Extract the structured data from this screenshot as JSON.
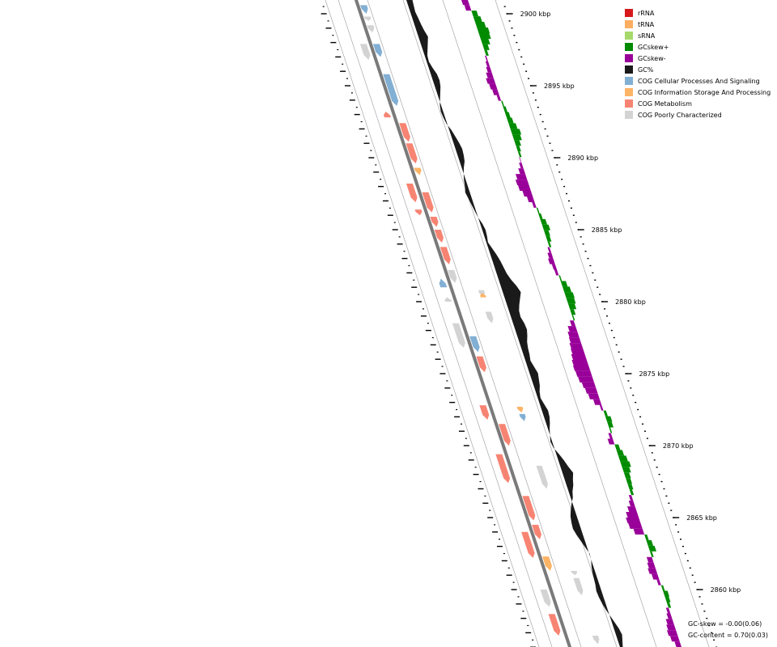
{
  "legend": {
    "items": [
      {
        "label": "rRNA",
        "color": "#d7191c"
      },
      {
        "label": "tRNA",
        "color": "#fdae61"
      },
      {
        "label": "sRNA",
        "color": "#a6d96a"
      },
      {
        "label": "GCskew+",
        "color": "#008b00"
      },
      {
        "label": "GCskew-",
        "color": "#990099"
      },
      {
        "label": "GC%",
        "color": "#1a1a1a"
      },
      {
        "label": "COG Cellular Processes And Signaling",
        "color": "#82afd4"
      },
      {
        "label": "COG Information Storage And Processing",
        "color": "#fdb466"
      },
      {
        "label": "COG Metabolism",
        "color": "#f78473"
      },
      {
        "label": "COG Poorly Characterized",
        "color": "#d3d3d3"
      }
    ]
  },
  "stats": {
    "gc_skew": "GC-skew = -0.00(0.06)",
    "gc_content": "GC-content = 0.70(0.03)"
  },
  "colors": {
    "backbone": "#7a7a7a",
    "ring_line": "#9a9a9a",
    "ticks": "#000000",
    "gc_content": "#1a1a1a",
    "skew_positive": "#008b00",
    "skew_negative": "#990099",
    "cds": {
      "cellular": "#82afd4",
      "information": "#fdb466",
      "metabolism": "#f78473",
      "poorly": "#d3d3d3"
    }
  },
  "chart_data": {
    "type": "genome_map_segment",
    "scale_labels": [
      {
        "kbp": 2900,
        "label": "2900 kbp"
      },
      {
        "kbp": 2895,
        "label": "2895 kbp"
      },
      {
        "kbp": 2890,
        "label": "2890 kbp"
      },
      {
        "kbp": 2885,
        "label": "2885 kbp"
      },
      {
        "kbp": 2880,
        "label": "2880 kbp"
      },
      {
        "kbp": 2875,
        "label": "2875 kbp"
      },
      {
        "kbp": 2870,
        "label": "2870 kbp"
      },
      {
        "kbp": 2865,
        "label": "2865 kbp"
      },
      {
        "kbp": 2860,
        "label": "2860 kbp"
      }
    ],
    "kbp_range": [
      2856.0,
      2901.0
    ],
    "forward_features": [
      {
        "start": 2900.6,
        "end": 2900.0,
        "cat": "cellular"
      },
      {
        "start": 2899.8,
        "end": 2899.5,
        "cat": "poorly"
      },
      {
        "start": 2899.2,
        "end": 2898.7,
        "cat": "poorly"
      },
      {
        "start": 2897.9,
        "end": 2897.0,
        "cat": "cellular"
      },
      {
        "start": 2895.8,
        "end": 2893.6,
        "cat": "cellular"
      },
      {
        "start": 2892.4,
        "end": 2891.1,
        "cat": "metabolism"
      },
      {
        "start": 2891.0,
        "end": 2889.6,
        "cat": "metabolism"
      },
      {
        "start": 2889.3,
        "end": 2888.8,
        "cat": "information"
      },
      {
        "start": 2887.6,
        "end": 2886.2,
        "cat": "metabolism"
      },
      {
        "start": 2885.9,
        "end": 2885.2,
        "cat": "metabolism"
      },
      {
        "start": 2885.0,
        "end": 2884.1,
        "cat": "metabolism"
      },
      {
        "start": 2883.8,
        "end": 2882.6,
        "cat": "metabolism"
      },
      {
        "start": 2882.2,
        "end": 2881.3,
        "cat": "poorly"
      },
      {
        "start": 2877.6,
        "end": 2876.5,
        "cat": "cellular"
      },
      {
        "start": 2876.2,
        "end": 2875.1,
        "cat": "metabolism"
      },
      {
        "start": 2871.5,
        "end": 2870.0,
        "cat": "metabolism"
      },
      {
        "start": 2866.5,
        "end": 2864.8,
        "cat": "metabolism"
      },
      {
        "start": 2864.5,
        "end": 2863.5,
        "cat": "metabolism"
      },
      {
        "start": 2862.3,
        "end": 2861.3,
        "cat": "information"
      }
    ],
    "reverse_features": [
      {
        "start": 2897.9,
        "end": 2896.8,
        "cat": "poorly"
      },
      {
        "start": 2892.8,
        "end": 2893.2,
        "cat": "metabolism"
      },
      {
        "start": 2888.2,
        "end": 2886.9,
        "cat": "metabolism"
      },
      {
        "start": 2886.4,
        "end": 2886.0,
        "cat": "metabolism"
      },
      {
        "start": 2881.0,
        "end": 2881.6,
        "cat": "cellular"
      },
      {
        "start": 2880.0,
        "end": 2880.3,
        "cat": "poorly"
      },
      {
        "start": 2878.5,
        "end": 2876.8,
        "cat": "poorly"
      },
      {
        "start": 2872.8,
        "end": 2871.8,
        "cat": "metabolism"
      },
      {
        "start": 2869.4,
        "end": 2867.4,
        "cat": "metabolism"
      },
      {
        "start": 2864.0,
        "end": 2862.2,
        "cat": "metabolism"
      },
      {
        "start": 2860.0,
        "end": 2858.8,
        "cat": "poorly"
      },
      {
        "start": 2858.3,
        "end": 2856.8,
        "cat": "metabolism"
      }
    ],
    "outer_reverse_features": [
      {
        "start": 2880.8,
        "end": 2880.3,
        "cat": "poorly"
      },
      {
        "start": 2880.3,
        "end": 2880.6,
        "cat": "information"
      },
      {
        "start": 2879.3,
        "end": 2878.5,
        "cat": "poorly"
      },
      {
        "start": 2872.2,
        "end": 2871.7,
        "cat": "cellular"
      },
      {
        "start": 2868.6,
        "end": 2867.0,
        "cat": "poorly"
      },
      {
        "start": 2861.3,
        "end": 2861.0,
        "cat": "poorly"
      },
      {
        "start": 2860.6,
        "end": 2860.4,
        "cat": "poorly"
      },
      {
        "start": 2860.8,
        "end": 2859.6,
        "cat": "poorly"
      },
      {
        "start": 2856.8,
        "end": 2856.2,
        "cat": "poorly"
      },
      {
        "start": 2872.7,
        "end": 2872.3,
        "cat": "information"
      }
    ],
    "gc_content_deviation": [
      0.4,
      0.35,
      0.3,
      0.38,
      0.45,
      0.55,
      0.7,
      0.5,
      0.3,
      0.1,
      0.05,
      0.2,
      0.4,
      0.45,
      0.35,
      0.15,
      -0.05,
      -0.25,
      -0.35,
      -0.3,
      -0.2,
      0.05,
      0.2,
      0.35,
      0.45,
      0.4,
      0.3,
      0.05,
      -0.15,
      -0.3,
      -0.4,
      -0.55,
      -0.45,
      -0.35,
      -0.25,
      -0.15,
      0.05,
      0.15,
      0.1,
      0.0,
      0.2,
      0.4,
      0.55,
      0.65,
      0.75,
      0.95,
      1.25,
      1.45,
      1.2,
      0.95,
      0.75,
      0.7,
      0.85,
      0.9,
      0.75,
      0.55,
      0.45,
      0.4,
      0.3,
      0.45,
      0.6,
      0.5,
      0.4,
      0.2,
      0.1,
      0.25,
      0.4,
      0.35,
      0.2,
      0.0,
      -0.15,
      -0.3,
      -0.2,
      0.1,
      0.35,
      0.55,
      0.8,
      0.6,
      0.45,
      0.2,
      0.05,
      -0.25,
      -0.5,
      -0.7,
      -0.8,
      -0.85,
      -0.7,
      -0.5,
      -0.3,
      -0.1,
      -0.15,
      -0.3,
      -0.4,
      -0.45,
      -0.5,
      -0.6,
      -0.55,
      -0.45,
      -0.3,
      -0.1,
      0.1,
      0.3,
      0.4,
      0.25,
      0.1
    ],
    "gc_skew": [
      -0.5,
      -0.4,
      0.4,
      0.55,
      0.7,
      0.85,
      0.8,
      0.6,
      0.4,
      0.2,
      -0.1,
      -0.2,
      -0.3,
      -0.45,
      -0.6,
      -0.5,
      -0.4,
      -0.2,
      0.1,
      0.2,
      0.3,
      0.4,
      0.55,
      0.7,
      0.6,
      0.4,
      0.25,
      0.15,
      -0.05,
      -0.2,
      -0.4,
      -0.75,
      -0.9,
      -0.85,
      -0.65,
      -0.45,
      -0.2,
      0.1,
      0.2,
      0.4,
      0.5,
      0.35,
      0.3,
      0.15,
      -0.15,
      -0.3,
      -0.4,
      -0.25,
      -0.2,
      0.1,
      0.4,
      0.55,
      0.65,
      0.6,
      0.5,
      0.3,
      0.1,
      -0.3,
      -0.6,
      -0.75,
      -0.8,
      -0.9,
      -0.95,
      -1.05,
      -1.15,
      -1.2,
      -1.15,
      -1.1,
      -0.95,
      -0.85,
      -0.75,
      -0.5,
      -0.15,
      0.2,
      0.4,
      0.35,
      0.1,
      -0.2,
      -0.4,
      0.3,
      0.45,
      0.6,
      0.7,
      0.55,
      0.4,
      0.35,
      0.3,
      0.2,
      -0.2,
      -0.35,
      -0.6,
      -0.85,
      -1.0,
      -0.95,
      -0.7,
      0.2,
      0.4,
      0.5,
      0.15,
      -0.4,
      -0.5,
      -0.6,
      -0.45,
      -0.2,
      0.15,
      0.35,
      0.3,
      0.2,
      -0.2,
      -0.3,
      -0.5,
      -0.6,
      -0.7,
      -0.6,
      -0.4,
      0.2
    ]
  }
}
